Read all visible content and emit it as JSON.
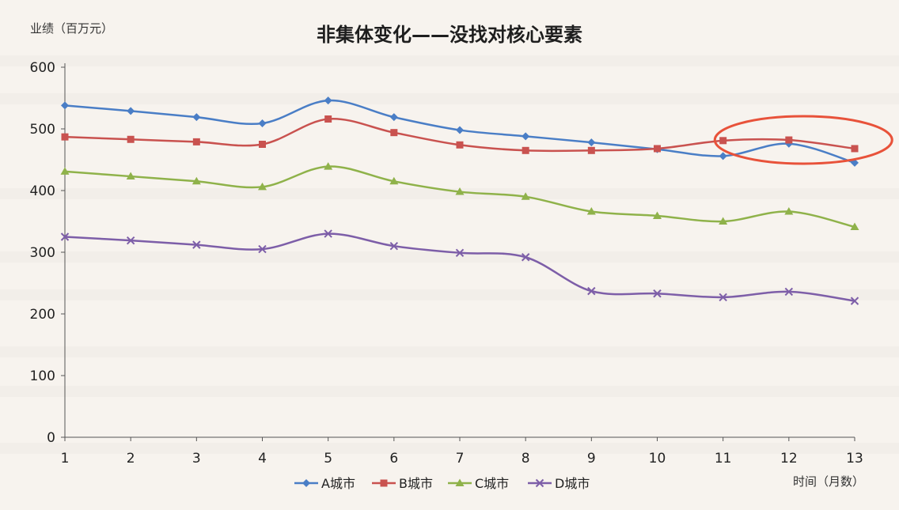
{
  "chart_data": {
    "type": "line",
    "title": "非集体变化——没找对核心要素",
    "ylabel": "业绩（百万元）",
    "xlabel": "时间（月数）",
    "x": [
      1,
      2,
      3,
      4,
      5,
      6,
      7,
      8,
      9,
      10,
      11,
      12,
      13
    ],
    "ylim": [
      0,
      600
    ],
    "yticks": [
      0,
      100,
      200,
      300,
      400,
      500,
      600
    ],
    "grid": false,
    "legend_position": "bottom",
    "series": [
      {
        "name": "A城市",
        "color": "#4a7ec6",
        "marker": "diamond",
        "values": [
          538,
          529,
          519,
          509,
          546,
          519,
          498,
          488,
          478,
          467,
          456,
          476,
          445
        ]
      },
      {
        "name": "B城市",
        "color": "#c9524f",
        "marker": "square",
        "values": [
          487,
          483,
          479,
          475,
          516,
          494,
          474,
          465,
          465,
          468,
          481,
          482,
          468
        ]
      },
      {
        "name": "C城市",
        "color": "#8fb24a",
        "marker": "triangle",
        "values": [
          431,
          423,
          415,
          406,
          439,
          415,
          398,
          390,
          366,
          359,
          350,
          366,
          341
        ]
      },
      {
        "name": "D城市",
        "color": "#7d5ea8",
        "marker": "x",
        "values": [
          325,
          319,
          312,
          305,
          330,
          310,
          299,
          292,
          237,
          233,
          227,
          236,
          221
        ]
      }
    ],
    "annotations": [
      {
        "type": "ellipse-highlight",
        "color": "#e8523a",
        "x_range": [
          11,
          12
        ],
        "note": ""
      }
    ]
  }
}
